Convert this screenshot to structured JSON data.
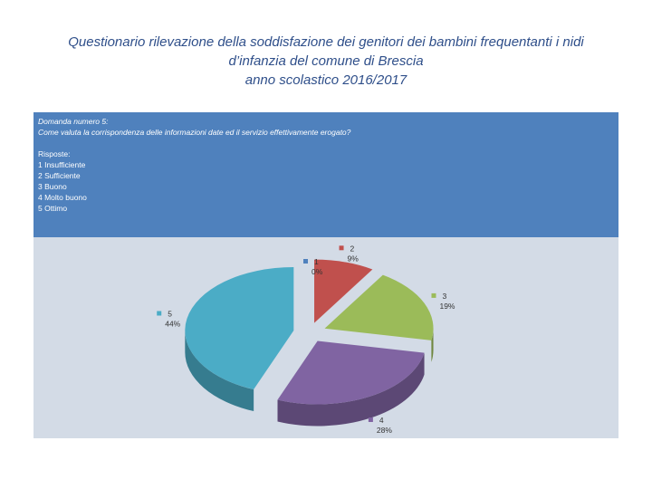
{
  "header": {
    "title_lines": [
      "Questionario rilevazione della soddisfazione dei genitori dei bambini frequentanti i nidi",
      "d’infanzia del comune di Brescia",
      "anno scolastico 2016/2017"
    ]
  },
  "question": {
    "label": "Domanda numero 5:",
    "text": "Come valuta la corrispondenza delle informazioni date ed il servizio effettivamente erogato?",
    "answers_title": "Risposte:",
    "answers": [
      "1 Insufficiente",
      "2 Sufficiente",
      "3 Buono",
      "4 Molto buono",
      "5 Ottimo"
    ]
  },
  "chart_data": {
    "type": "pie",
    "categories": [
      "1",
      "2",
      "3",
      "4",
      "5"
    ],
    "values": [
      0,
      9,
      19,
      28,
      44
    ],
    "value_labels": [
      "0%",
      "9%",
      "19%",
      "28%",
      "44%"
    ],
    "colors": [
      "#4f81bd",
      "#c0504d",
      "#9bbb59",
      "#8064a2",
      "#4bacc6"
    ],
    "three_d": true,
    "exploded": true
  }
}
